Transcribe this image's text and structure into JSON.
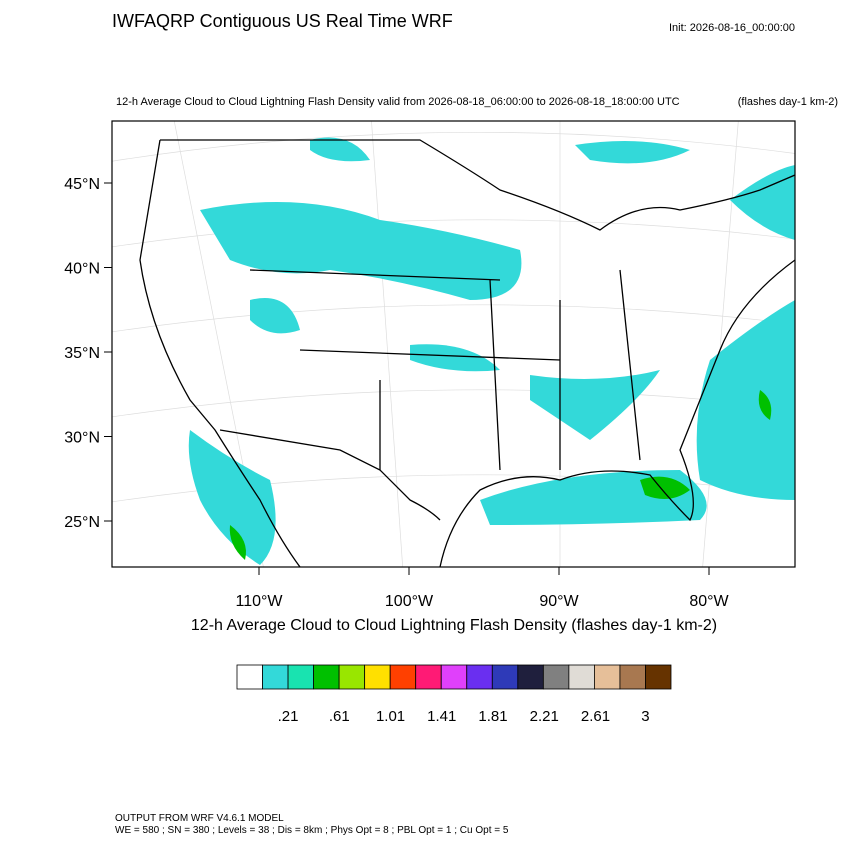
{
  "header": {
    "title": "IWFAQRP Contiguous US Real Time WRF",
    "init": "Init: 2026-08-16_00:00:00",
    "subtitle": "12-h Average Cloud to Cloud Lightning Flash Density valid from 2026-08-18_06:00:00 to 2026-08-18_18:00:00 UTC",
    "units": "(flashes day-1 km-2)"
  },
  "map": {
    "lat_labels": [
      {
        "value": 45,
        "label": "45°N"
      },
      {
        "value": 40,
        "label": "40°N"
      },
      {
        "value": 35,
        "label": "35°N"
      },
      {
        "value": 30,
        "label": "30°N"
      },
      {
        "value": 25,
        "label": "25°N"
      }
    ],
    "lon_labels": [
      {
        "value": -110,
        "label": "110°W"
      },
      {
        "value": -100,
        "label": "100°W"
      },
      {
        "value": -90,
        "label": "90°W"
      },
      {
        "value": -80,
        "label": "80°W"
      }
    ]
  },
  "colorbar": {
    "title": "12-h Average Cloud to Cloud Lightning Flash Density  (flashes day-1 km-2)",
    "colors": [
      "#ffffff",
      "#33d9d9",
      "#19e3b0",
      "#00c000",
      "#99e600",
      "#ffe000",
      "#ff4000",
      "#ff1a75",
      "#e040fb",
      "#6a2ff0",
      "#2e3ab8",
      "#1f1f3d",
      "#808080",
      "#e0dcd6",
      "#e6bf99",
      "#a87850",
      "#663300"
    ],
    "ticks": [
      {
        "value": 0.21,
        "label": ".21"
      },
      {
        "value": 0.61,
        "label": ".61"
      },
      1.01,
      1.41,
      1.81,
      2.21,
      2.61,
      3
    ]
  },
  "footer": {
    "line1": "OUTPUT FROM WRF V4.6.1 MODEL",
    "line2": "WE = 580 ; SN = 380 ; Levels = 38 ; Dis = 8km ; Phys Opt = 8 ; PBL Opt = 1 ; Cu Opt = 5"
  }
}
